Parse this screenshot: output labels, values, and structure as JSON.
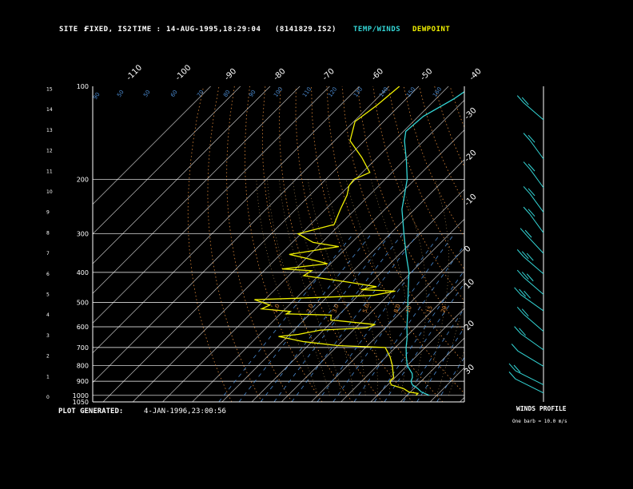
{
  "header": {
    "site_label": "SITE :",
    "site_value": "FIXED, IS2",
    "time_label": "TIME :",
    "time_value": "14-AUG-1995,18:29:04",
    "file_id": "(8141829.IS2)",
    "legend_temp": "TEMP/WINDS",
    "legend_dew": "DEWPOINT"
  },
  "footer": {
    "generated_label": "PLOT GENERATED:",
    "generated_value": "4-JAN-1996,23:00:56"
  },
  "winds": {
    "title": "WINDS PROFILE",
    "scale_note": "One barb = 10.0 m/s"
  },
  "colors": {
    "temp": "#33d6d6",
    "dew": "#f0f000",
    "dry_adiabat": "#e08a3a",
    "moist_adiabat": "#c8a060",
    "mixing_ratio": "#4a8ad0",
    "isobar": "#ffffff",
    "isotherm": "#ffffff"
  },
  "chart_data": {
    "type": "line",
    "diagram": "skew-T log-P",
    "pressure_levels_hPa": [
      100,
      200,
      300,
      400,
      500,
      600,
      700,
      800,
      900,
      1000,
      1050
    ],
    "pressure_tick_labels": [
      "100",
      "200",
      "300",
      "400",
      "500",
      "600",
      "700",
      "800",
      "900",
      "1000",
      "1050"
    ],
    "height_ticks_km": [
      0,
      1,
      2,
      3,
      4,
      5,
      6,
      7,
      8,
      9,
      10,
      11,
      12,
      13,
      14,
      15
    ],
    "top_temp_labels": [
      "-110",
      "-100",
      "-90",
      "-80",
      "-70",
      "-60",
      "-50",
      "-40"
    ],
    "right_temp_labels": [
      "-30",
      "-20",
      "-10",
      "0",
      "10",
      "20",
      "30"
    ],
    "mixing_ratio_labels": [
      "1.0",
      "2.0",
      "3.0",
      "5.0",
      "8.0",
      "10",
      "15",
      "20"
    ],
    "series": [
      {
        "name": "TEMP/WINDS",
        "points_hPa_degC": [
          [
            1000,
            27.5
          ],
          [
            975,
            23.7
          ],
          [
            950,
            21.3
          ],
          [
            925,
            18.3
          ],
          [
            900,
            16.6
          ],
          [
            875,
            15.8
          ],
          [
            850,
            14.4
          ],
          [
            800,
            10.0
          ],
          [
            750,
            6.8
          ],
          [
            700,
            3.6
          ],
          [
            650,
            0.6
          ],
          [
            600,
            -3.1
          ],
          [
            550,
            -6.8
          ],
          [
            500,
            -11.0
          ],
          [
            450,
            -15.6
          ],
          [
            400,
            -20.7
          ],
          [
            350,
            -27.7
          ],
          [
            300,
            -35.4
          ],
          [
            250,
            -44.3
          ],
          [
            200,
            -52.6
          ],
          [
            175,
            -58.9
          ],
          [
            150,
            -66.5
          ],
          [
            140,
            -69.2
          ],
          [
            125,
            -68.4
          ],
          [
            110,
            -64.0
          ],
          [
            100,
            -62.0
          ]
        ]
      },
      {
        "name": "DEWPOINT",
        "points_hPa_degC": [
          [
            1000,
            23.0
          ],
          [
            985,
            23.0
          ],
          [
            975,
            19.5
          ],
          [
            950,
            16.5
          ],
          [
            925,
            11.2
          ],
          [
            900,
            9.5
          ],
          [
            875,
            9.5
          ],
          [
            850,
            8.0
          ],
          [
            800,
            5.0
          ],
          [
            750,
            1.3
          ],
          [
            700,
            -3.4
          ],
          [
            690,
            -20.0
          ],
          [
            670,
            -33.0
          ],
          [
            645,
            -43.0
          ],
          [
            635,
            -37.0
          ],
          [
            615,
            -31.0
          ],
          [
            605,
            -16.3
          ],
          [
            590,
            -14.5
          ],
          [
            570,
            -31.0
          ],
          [
            550,
            -32.5
          ],
          [
            545,
            -48.0
          ],
          [
            535,
            -47.5
          ],
          [
            525,
            -58.0
          ],
          [
            510,
            -56.5
          ],
          [
            490,
            -63.5
          ],
          [
            485,
            -49.0
          ],
          [
            475,
            -25.0
          ],
          [
            460,
            -19.0
          ],
          [
            455,
            -31.0
          ],
          [
            445,
            -26.8
          ],
          [
            430,
            -38.0
          ],
          [
            410,
            -55.0
          ],
          [
            395,
            -54.0
          ],
          [
            390,
            -64.5
          ],
          [
            375,
            -51.0
          ],
          [
            360,
            -60.0
          ],
          [
            350,
            -67.0
          ],
          [
            330,
            -53.0
          ],
          [
            320,
            -63.0
          ],
          [
            300,
            -71.0
          ],
          [
            280,
            -62.0
          ],
          [
            250,
            -65.0
          ],
          [
            225,
            -67.5
          ],
          [
            210,
            -70.0
          ],
          [
            200,
            -70.5
          ],
          [
            190,
            -67.5
          ],
          [
            170,
            -75.2
          ],
          [
            150,
            -84.8
          ],
          [
            130,
            -89.6
          ],
          [
            115,
            -87.7
          ],
          [
            100,
            -86.5
          ]
        ]
      }
    ],
    "wind_barbs": [
      {
        "height_km": 0.2,
        "dir_deg": 135,
        "speed_ms": 10
      },
      {
        "height_km": 0.6,
        "dir_deg": 135,
        "speed_ms": 20
      },
      {
        "height_km": 1.5,
        "dir_deg": 140,
        "speed_ms": 10
      },
      {
        "height_km": 2.3,
        "dir_deg": 145,
        "speed_ms": 20
      },
      {
        "height_km": 3.2,
        "dir_deg": 150,
        "speed_ms": 20
      },
      {
        "height_km": 4.2,
        "dir_deg": 145,
        "speed_ms": 30
      },
      {
        "height_km": 5.0,
        "dir_deg": 150,
        "speed_ms": 30
      },
      {
        "height_km": 6.0,
        "dir_deg": 150,
        "speed_ms": 30
      },
      {
        "height_km": 7.0,
        "dir_deg": 155,
        "speed_ms": 20
      },
      {
        "height_km": 8.0,
        "dir_deg": 160,
        "speed_ms": 20
      },
      {
        "height_km": 9.0,
        "dir_deg": 160,
        "speed_ms": 20
      },
      {
        "height_km": 10.2,
        "dir_deg": 160,
        "speed_ms": 20
      },
      {
        "height_km": 11.6,
        "dir_deg": 160,
        "speed_ms": 20
      },
      {
        "height_km": 13.5,
        "dir_deg": 150,
        "speed_ms": 20
      }
    ]
  }
}
